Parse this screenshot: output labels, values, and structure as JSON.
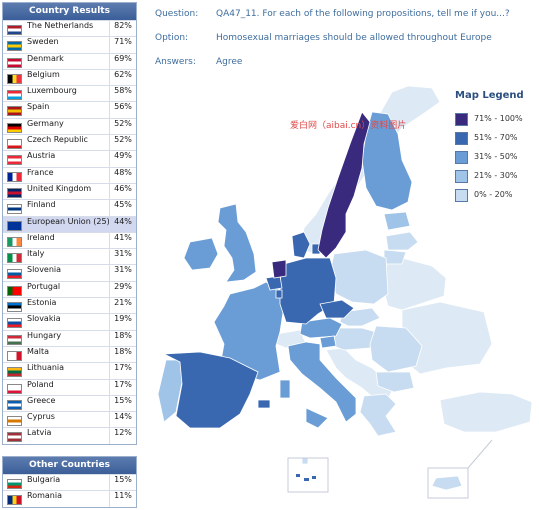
{
  "header": {
    "question_label": "Question:",
    "question_text": "QA47_11. For each of the following propositions, tell me if you...?",
    "option_label": "Option:",
    "option_text": "Homosexual marriages should be allowed throughout Europe",
    "answers_label": "Answers:",
    "answers_text": "Agree"
  },
  "watermark": "爱白网（aibai.cn）资料图片",
  "colors": {
    "c71_100": "#3a2a7d",
    "c51_70": "#3a68b0",
    "c31_50": "#6a9dd6",
    "c21_30": "#9fc4e8",
    "c0_20": "#c7dcf0",
    "nonmember": "#dde9f4",
    "sea": "#ffffff"
  },
  "legend": {
    "title": "Map Legend",
    "items": [
      {
        "label": "71% - 100%",
        "color": "#3a2a7d"
      },
      {
        "label": "51% - 70%",
        "color": "#3a68b0"
      },
      {
        "label": "31% - 50%",
        "color": "#6a9dd6"
      },
      {
        "label": "21% - 30%",
        "color": "#9fc4e8"
      },
      {
        "label": "0% - 20%",
        "color": "#c7dcf0"
      }
    ]
  },
  "country_results": {
    "title": "Country Results",
    "rows": [
      {
        "name": "The Netherlands",
        "value": "82%",
        "flag": [
          "#ae1c28",
          "#ffffff",
          "#21468b"
        ]
      },
      {
        "name": "Sweden",
        "value": "71%",
        "flag": [
          "#006aa7",
          "#fecc00",
          "#006aa7"
        ]
      },
      {
        "name": "Denmark",
        "value": "69%",
        "flag": [
          "#c60c30",
          "#ffffff",
          "#c60c30"
        ]
      },
      {
        "name": "Belgium",
        "value": "62%",
        "flag": [
          "#000000",
          "#fdda24",
          "#ef3340"
        ],
        "vertical": true
      },
      {
        "name": "Luxembourg",
        "value": "58%",
        "flag": [
          "#ed2939",
          "#ffffff",
          "#00a1de"
        ]
      },
      {
        "name": "Spain",
        "value": "56%",
        "flag": [
          "#aa151b",
          "#f1bf00",
          "#aa151b"
        ]
      },
      {
        "name": "Germany",
        "value": "52%",
        "flag": [
          "#000000",
          "#dd0000",
          "#ffce00"
        ]
      },
      {
        "name": "Czech Republic",
        "value": "52%",
        "flag": [
          "#ffffff",
          "#ffffff",
          "#d7141a"
        ]
      },
      {
        "name": "Austria",
        "value": "49%",
        "flag": [
          "#ed2939",
          "#ffffff",
          "#ed2939"
        ]
      },
      {
        "name": "France",
        "value": "48%",
        "flag": [
          "#002395",
          "#ffffff",
          "#ed2939"
        ],
        "vertical": true
      },
      {
        "name": "United Kingdom",
        "value": "46%",
        "flag": [
          "#012169",
          "#c8102e",
          "#012169"
        ]
      },
      {
        "name": "Finland",
        "value": "45%",
        "flag": [
          "#ffffff",
          "#003580",
          "#ffffff"
        ]
      },
      {
        "name": "European Union (25)",
        "value": "44%",
        "flag": [
          "#003399",
          "#003399",
          "#003399"
        ],
        "eu": true
      },
      {
        "name": "Ireland",
        "value": "41%",
        "flag": [
          "#169b62",
          "#ffffff",
          "#ff883e"
        ],
        "vertical": true
      },
      {
        "name": "Italy",
        "value": "31%",
        "flag": [
          "#009246",
          "#ffffff",
          "#ce2b37"
        ],
        "vertical": true
      },
      {
        "name": "Slovenia",
        "value": "31%",
        "flag": [
          "#ffffff",
          "#005da4",
          "#ed1c24"
        ]
      },
      {
        "name": "Portugal",
        "value": "29%",
        "flag": [
          "#006600",
          "#ff0000",
          "#ff0000"
        ],
        "vertical": true
      },
      {
        "name": "Estonia",
        "value": "21%",
        "flag": [
          "#0072ce",
          "#000000",
          "#ffffff"
        ]
      },
      {
        "name": "Slovakia",
        "value": "19%",
        "flag": [
          "#ffffff",
          "#0b4ea2",
          "#ee1c25"
        ]
      },
      {
        "name": "Hungary",
        "value": "18%",
        "flag": [
          "#ce2939",
          "#ffffff",
          "#477050"
        ]
      },
      {
        "name": "Malta",
        "value": "18%",
        "flag": [
          "#ffffff",
          "#ffffff",
          "#cf142b"
        ],
        "vertical": true
      },
      {
        "name": "Lithuania",
        "value": "17%",
        "flag": [
          "#fdb913",
          "#006a44",
          "#c1272d"
        ]
      },
      {
        "name": "Poland",
        "value": "17%",
        "flag": [
          "#ffffff",
          "#ffffff",
          "#dc143c"
        ]
      },
      {
        "name": "Greece",
        "value": "15%",
        "flag": [
          "#0d5eaf",
          "#ffffff",
          "#0d5eaf"
        ]
      },
      {
        "name": "Cyprus",
        "value": "14%",
        "flag": [
          "#ffffff",
          "#d57800",
          "#ffffff"
        ]
      },
      {
        "name": "Latvia",
        "value": "12%",
        "flag": [
          "#9e3039",
          "#ffffff",
          "#9e3039"
        ]
      }
    ]
  },
  "other_countries": {
    "title": "Other Countries",
    "rows": [
      {
        "name": "Bulgaria",
        "value": "15%",
        "flag": [
          "#ffffff",
          "#00966e",
          "#d62612"
        ]
      },
      {
        "name": "Romania",
        "value": "11%",
        "flag": [
          "#002b7f",
          "#fcd116",
          "#ce1126"
        ],
        "vertical": true
      }
    ]
  },
  "chart_data": {
    "type": "choropleth map",
    "metric": "Homosexual marriages should be allowed throughout Europe",
    "answer": "Agree",
    "unit": "%",
    "categories": [
      "The Netherlands",
      "Sweden",
      "Denmark",
      "Belgium",
      "Luxembourg",
      "Spain",
      "Germany",
      "Czech Republic",
      "Austria",
      "France",
      "United Kingdom",
      "Finland",
      "European Union (25)",
      "Ireland",
      "Italy",
      "Slovenia",
      "Portugal",
      "Estonia",
      "Slovakia",
      "Hungary",
      "Malta",
      "Lithuania",
      "Poland",
      "Greece",
      "Cyprus",
      "Latvia",
      "Bulgaria",
      "Romania"
    ],
    "values": [
      82,
      71,
      69,
      62,
      58,
      56,
      52,
      52,
      49,
      48,
      46,
      45,
      44,
      41,
      31,
      31,
      29,
      21,
      19,
      18,
      18,
      17,
      17,
      15,
      14,
      12,
      15,
      11
    ],
    "legend_bins": [
      "71% - 100%",
      "51% - 70%",
      "31% - 50%",
      "21% - 30%",
      "0% - 20%"
    ],
    "legend_placement": "top-right"
  }
}
